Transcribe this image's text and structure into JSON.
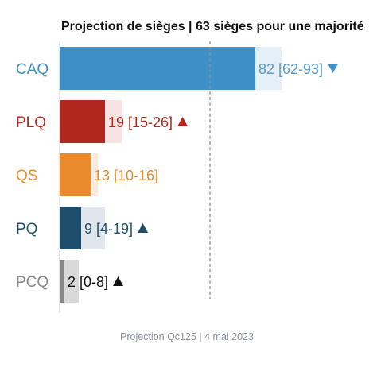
{
  "chart_data": {
    "type": "bar",
    "title": "Projection de sièges | 63 sièges pour une majorité",
    "caption": "Projection Qc125 | 4 mai 2023",
    "majority": 63,
    "xlim": [
      0,
      125
    ],
    "bars": [
      {
        "party": "CAQ",
        "value": 82,
        "low": 62,
        "high": 93,
        "label": "82 [62-93]",
        "trend": "down",
        "color": "#3d8fc7",
        "range_color": "#e5eff8",
        "label_color": "#5a9bca"
      },
      {
        "party": "PLQ",
        "value": 19,
        "low": 15,
        "high": 26,
        "label": "19 [15-26]",
        "trend": "up",
        "color": "#b1261f",
        "range_color": "#f7e3e1",
        "label_color": "#b1261f"
      },
      {
        "party": "QS",
        "value": 13,
        "low": 10,
        "high": 16,
        "label": "13 [10-16]",
        "trend": "none",
        "color": "#ea8a2a",
        "range_color": "#fbeadb",
        "label_color": "#e8892a"
      },
      {
        "party": "PQ",
        "value": 9,
        "low": 4,
        "high": 19,
        "label": "9 [4-19]",
        "trend": "up",
        "color": "#1f4e6c",
        "range_color": "#e0e6eb",
        "label_color": "#1f4e6c"
      },
      {
        "party": "PCQ",
        "value": 2,
        "low": 0,
        "high": 8,
        "label": "2 [0-8]",
        "trend": "up",
        "color": "#888888",
        "range_color": "#d9d9d9",
        "label_color": "#111111"
      }
    ]
  }
}
